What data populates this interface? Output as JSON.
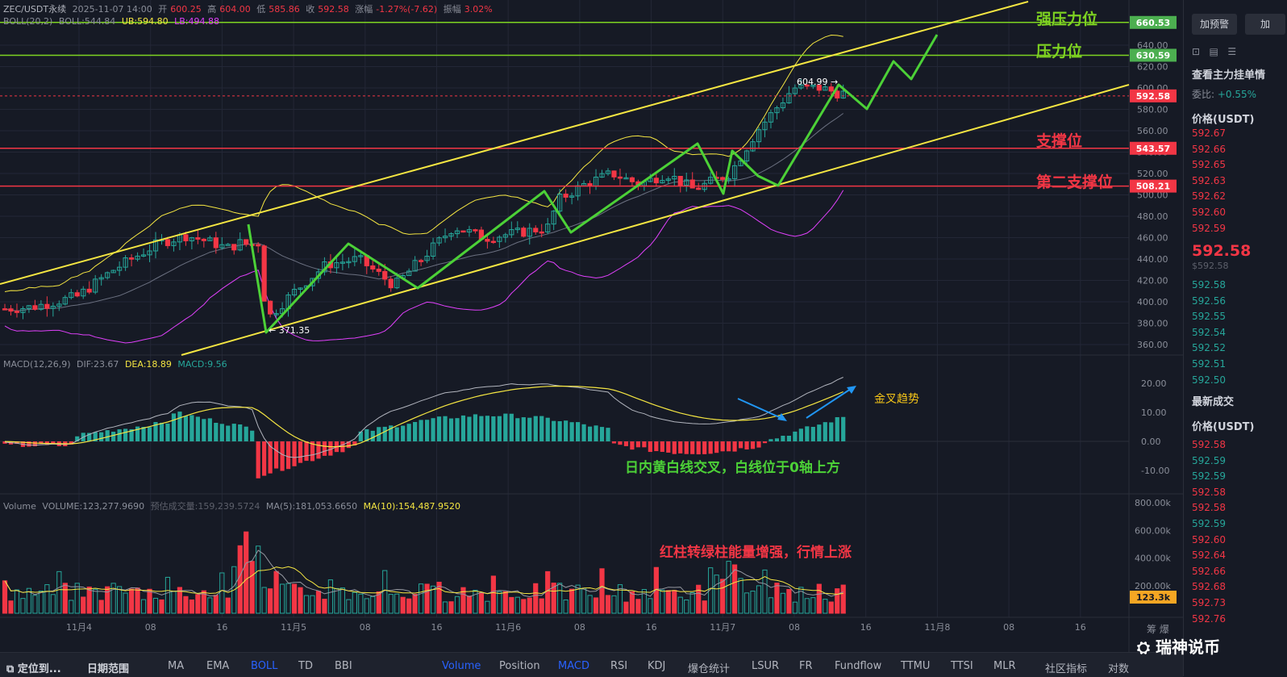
{
  "header": {
    "symbol": "ZEC/USDT永续",
    "time": "2025-11-07 14:00",
    "open_label": "开",
    "open": "600.25",
    "high_label": "高",
    "high": "604.00",
    "low_label": "低",
    "low": "585.86",
    "close_label": "收",
    "close": "592.58",
    "change_label": "涨幅",
    "change": "-1.27%(-7.62)",
    "amp_label": "振幅",
    "amp": "3.02%"
  },
  "boll_legend": {
    "name": "BOLL(20,2)",
    "mid": "BOLL:544.84",
    "ub": "UB:594.80",
    "lb": "LB:494.88"
  },
  "macd_legend": {
    "name": "MACD(12,26,9)",
    "dif": "DIF:23.67",
    "dea": "DEA:18.89",
    "macd": "MACD:9.56"
  },
  "volume_legend": {
    "name": "Volume",
    "vol": "VOLUME:123,277.9690",
    "pred": "预估成交量:159,239.5724",
    "ma5": "MA(5):181,053.6650",
    "ma10": "MA(10):154,487.9520"
  },
  "annotations": {
    "strong_resist": "强压力位",
    "resist": "压力位",
    "support": "支撑位",
    "support2": "第二支撑位",
    "high_label": "604.99 →",
    "low_label": "← 371.35",
    "golden_cross": "金叉趋势",
    "macd_note": "日内黄白线交叉，白线位于0轴上方",
    "volume_note": "红柱转绿柱能量增强，行情上涨"
  },
  "price_tags": {
    "strong": "660.53",
    "resist": "630.59",
    "last": "592.58",
    "support": "543.57",
    "support2": "508.21",
    "vol": "123.3k"
  },
  "chart_data": {
    "type": "candlestick",
    "y_ticks": [
      "640.00",
      "620.00",
      "600.00",
      "580.00",
      "560.00",
      "540.00",
      "520.00",
      "500.00",
      "480.00",
      "460.00",
      "440.00",
      "420.00",
      "400.00",
      "380.00",
      "360.00"
    ],
    "y_tick_values": [
      640,
      620,
      600,
      580,
      560,
      540,
      520,
      500,
      480,
      460,
      440,
      420,
      400,
      380,
      360
    ],
    "macd_ticks": [
      "20.00",
      "10.00",
      "0.00",
      "-10.00"
    ],
    "macd_tick_values": [
      20,
      10,
      0,
      -10
    ],
    "vol_ticks": [
      "800.00k",
      "600.00k",
      "400.00k",
      "200.00k"
    ],
    "vol_tick_values": [
      800,
      600,
      400,
      200
    ],
    "x_ticks": [
      "11月4",
      "08",
      "16",
      "11月5",
      "08",
      "16",
      "11月6",
      "08",
      "16",
      "11月7",
      "08",
      "16",
      "11月8",
      "08",
      "16"
    ],
    "levels": {
      "strong_resist": 660.53,
      "resist": 630.59,
      "support": 543.57,
      "support2": 508.21,
      "last": 592.58
    },
    "high": 604.99,
    "low": 371.35
  },
  "toolbar": {
    "locate": "定位到...",
    "range": "日期范围",
    "items": [
      "MA",
      "EMA",
      "BOLL",
      "TD",
      "BBI",
      "Volume",
      "Position",
      "MACD",
      "RSI",
      "KDJ",
      "爆仓统计",
      "LSUR",
      "FR",
      "Fundflow",
      "TTMU",
      "TTSI",
      "MLR",
      "社区指标",
      "对数"
    ],
    "corner": "筹 爆"
  },
  "sidebar": {
    "alert_btn": "加预警",
    "add_btn": "加",
    "title": "查看主力挂单情",
    "ratio_label": "委比:",
    "ratio": "+0.55%",
    "price_head": "价格(USDT)",
    "asks": [
      "592.67",
      "592.66",
      "592.65",
      "592.63",
      "592.62",
      "592.60",
      "592.59"
    ],
    "last": "592.58",
    "last_sub": "$592.58",
    "bids": [
      "592.58",
      "592.56",
      "592.55",
      "592.54",
      "592.52",
      "592.51",
      "592.50"
    ],
    "trades_title": "最新成交",
    "trades_head": "价格(USDT)",
    "trades": [
      "592.58",
      "592.59",
      "592.59",
      "592.58",
      "592.58",
      "592.59",
      "592.60",
      "592.64",
      "592.66",
      "592.68",
      "592.73",
      "592.76"
    ],
    "trade_colors": [
      "#f23645",
      "#26a69a",
      "#26a69a",
      "#f23645",
      "#f23645",
      "#26a69a",
      "#f23645",
      "#f23645",
      "#f23645",
      "#f23645",
      "#f23645",
      "#f23645"
    ]
  },
  "watermark": "瑞神说币",
  "colors": {
    "up": "#26a69a",
    "down": "#f23645",
    "channel": "#f5e642",
    "green_line": "#7ed321",
    "path": "#4cd137",
    "red_level": "#f23645"
  }
}
